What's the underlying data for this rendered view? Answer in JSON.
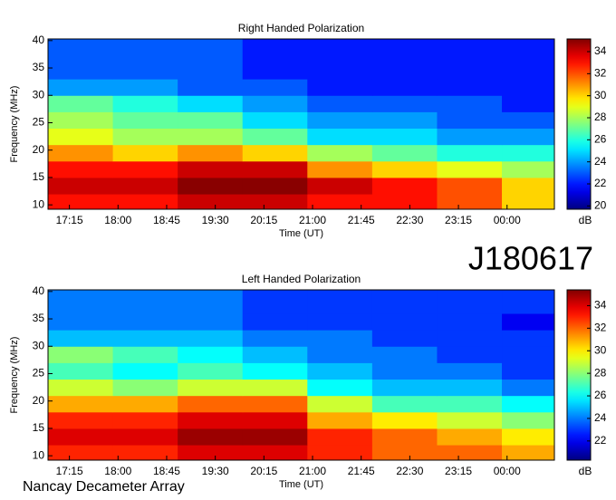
{
  "chart_data": [
    {
      "type": "heatmap",
      "title": "Right Handed Polarization",
      "x_label": "Time (UT)",
      "y_label": "Frequency (MHz)",
      "colormap": "jet",
      "colorbar_label": "dB",
      "xlim": [
        16.92,
        24.73
      ],
      "xticks": [
        {
          "value": 17.25,
          "label": "17:15"
        },
        {
          "value": 18,
          "label": "18:00"
        },
        {
          "value": 18.75,
          "label": "18:45"
        },
        {
          "value": 19.5,
          "label": "19:30"
        },
        {
          "value": 20.25,
          "label": "20:15"
        },
        {
          "value": 21,
          "label": "21:00"
        },
        {
          "value": 21.75,
          "label": "21:45"
        },
        {
          "value": 22.5,
          "label": "22:30"
        },
        {
          "value": 23.25,
          "label": "23:15"
        },
        {
          "value": 24,
          "label": "00:00"
        }
      ],
      "ylim": [
        9.2,
        40.3
      ],
      "yticks": [
        10,
        15,
        20,
        25,
        30,
        35,
        40
      ],
      "zlim": [
        19.7,
        35.15
      ],
      "zticks": [
        20,
        22,
        24,
        26,
        28,
        30,
        32,
        34
      ],
      "x_edges": [
        16.92,
        17.92,
        18.92,
        19.92,
        20.92,
        21.92,
        22.92,
        23.92,
        24.73
      ],
      "y_edges": [
        9.2,
        12,
        15,
        18,
        21,
        24,
        27,
        30,
        33,
        36,
        40.3
      ],
      "values": [
        [
          33,
          33,
          34,
          34,
          33,
          33,
          32,
          30
        ],
        [
          34,
          34,
          35,
          35,
          34,
          33,
          32,
          30
        ],
        [
          33,
          33,
          34,
          34,
          31,
          30,
          29,
          28
        ],
        [
          31,
          30,
          31,
          30,
          28,
          27,
          26,
          26
        ],
        [
          29,
          28,
          28,
          27,
          25,
          25,
          24,
          24
        ],
        [
          28,
          27,
          27,
          25,
          24,
          24,
          23,
          23
        ],
        [
          27,
          26,
          25,
          24,
          23,
          23,
          23,
          22
        ],
        [
          24,
          24,
          23,
          23,
          22,
          22,
          22,
          22
        ],
        [
          23,
          23,
          23,
          22,
          22,
          22,
          22,
          22
        ],
        [
          23,
          23,
          23,
          22,
          22,
          22,
          22,
          22
        ]
      ]
    },
    {
      "type": "heatmap",
      "title": "Left Handed Polarization",
      "x_label": "Time (UT)",
      "y_label": "Frequency (MHz)",
      "colormap": "jet",
      "colorbar_label": "dB",
      "xlim": [
        16.92,
        24.73
      ],
      "xticks": [
        {
          "value": 17.25,
          "label": "17:15"
        },
        {
          "value": 18,
          "label": "18:00"
        },
        {
          "value": 18.75,
          "label": "18:45"
        },
        {
          "value": 19.5,
          "label": "19:30"
        },
        {
          "value": 20.25,
          "label": "20:15"
        },
        {
          "value": 21,
          "label": "21:00"
        },
        {
          "value": 21.75,
          "label": "21:45"
        },
        {
          "value": 22.5,
          "label": "22:30"
        },
        {
          "value": 23.25,
          "label": "23:15"
        },
        {
          "value": 24,
          "label": "00:00"
        }
      ],
      "ylim": [
        9.2,
        40.3
      ],
      "yticks": [
        10,
        15,
        20,
        25,
        30,
        35,
        40
      ],
      "zlim": [
        20.3,
        35.4
      ],
      "zticks": [
        22,
        24,
        26,
        28,
        30,
        32,
        34
      ],
      "x_edges": [
        16.92,
        17.92,
        18.92,
        19.92,
        20.92,
        21.92,
        22.92,
        23.92,
        24.73
      ],
      "y_edges": [
        9.2,
        12,
        15,
        18,
        21,
        24,
        27,
        30,
        33,
        36,
        40.3
      ],
      "values": [
        [
          33,
          33,
          34,
          34,
          33,
          32,
          32,
          31
        ],
        [
          34,
          34,
          35,
          35,
          33,
          32,
          31,
          30
        ],
        [
          33,
          33,
          34,
          34,
          31,
          30,
          29,
          28
        ],
        [
          31,
          31,
          32,
          32,
          29,
          27,
          27,
          26
        ],
        [
          29,
          28,
          29,
          29,
          26,
          25,
          25,
          24
        ],
        [
          27,
          26,
          27,
          26,
          25,
          24,
          24,
          23
        ],
        [
          28,
          27,
          26,
          25,
          24,
          24,
          23,
          23
        ],
        [
          25,
          25,
          25,
          24,
          24,
          23,
          23,
          23
        ],
        [
          24,
          24,
          24,
          23,
          23,
          23,
          23,
          22
        ],
        [
          24,
          24,
          24,
          23,
          23,
          23,
          23,
          23
        ]
      ]
    }
  ],
  "annotations": {
    "observation_id": "J180617",
    "instrument": "Nancay Decameter Array"
  }
}
